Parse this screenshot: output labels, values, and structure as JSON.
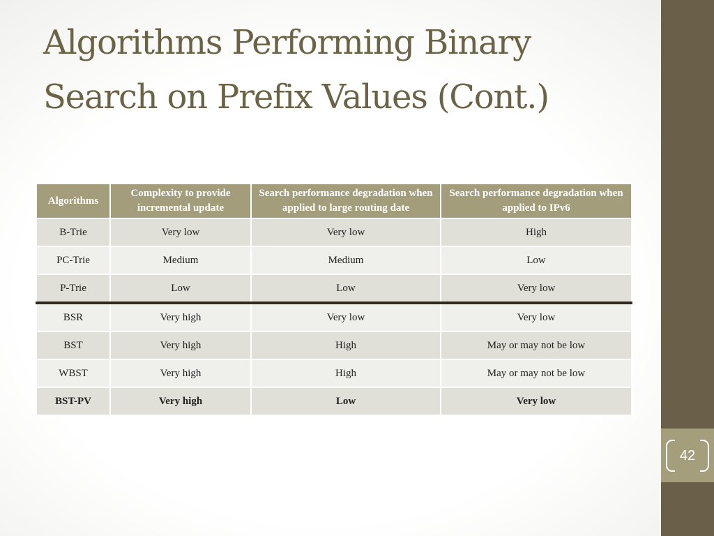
{
  "slide": {
    "title_lines": [
      "Algorithms Performing Binary",
      "Search on Prefix Values (Cont.)"
    ],
    "page_number": "42"
  },
  "table": {
    "headers": [
      "Algorithms",
      "Complexity to provide incremental update",
      "Search performance degradation when applied to large routing date",
      "Search performance degradation when applied to IPv6"
    ],
    "rows": [
      [
        "B-Trie",
        "Very low",
        "Very low",
        "High"
      ],
      [
        "PC-Trie",
        "Medium",
        "Medium",
        "Low"
      ],
      [
        "P-Trie",
        "Low",
        "Low",
        "Very low"
      ],
      [
        "BSR",
        "Very high",
        "Very low",
        "Very low"
      ],
      [
        "BST",
        "Very high",
        "High",
        "May or may not be low"
      ],
      [
        "WBST",
        "Very high",
        "High",
        "May or may not be low"
      ],
      [
        "BST-PV",
        "Very high",
        "Low",
        "Very low"
      ]
    ]
  },
  "colors": {
    "title": "#6b6346",
    "sidebar": "#6a6049",
    "accent": "#a49e7c",
    "header_bg": "#a39d7b",
    "row_odd": "#e0dfd8",
    "row_even": "#efefeb"
  }
}
